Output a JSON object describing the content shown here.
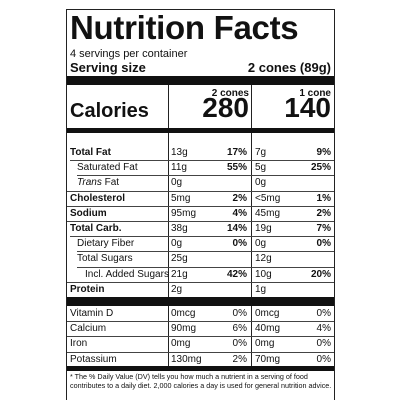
{
  "title": "Nutrition Facts",
  "servings_per_container": "4 servings per container",
  "serving_size_label": "Serving size",
  "serving_size_value": "2 cones (89g)",
  "columns": [
    {
      "header": "2 cones",
      "calories": "280"
    },
    {
      "header": "1 cone",
      "calories": "140"
    }
  ],
  "calories_label": "Calories",
  "nutrients": [
    {
      "label": "Total Fat",
      "style": "bold",
      "indent": 0,
      "c1_amt": "13g",
      "c1_pct": "17%",
      "c2_amt": "7g",
      "c2_pct": "9%"
    },
    {
      "label": "Saturated Fat",
      "style": "normal",
      "indent": 1,
      "c1_amt": "11g",
      "c1_pct": "55%",
      "c2_amt": "5g",
      "c2_pct": "25%"
    },
    {
      "label_italic": "Trans",
      "label": " Fat",
      "style": "normal",
      "indent": 1,
      "c1_amt": "0g",
      "c1_pct": "",
      "c2_amt": "0g",
      "c2_pct": ""
    },
    {
      "label": "Cholesterol",
      "style": "bold",
      "indent": 0,
      "c1_amt": "5mg",
      "c1_pct": "2%",
      "c2_amt": "<5mg",
      "c2_pct": "1%"
    },
    {
      "label": "Sodium",
      "style": "bold",
      "indent": 0,
      "c1_amt": "95mg",
      "c1_pct": "4%",
      "c2_amt": "45mg",
      "c2_pct": "2%"
    },
    {
      "label": "Total Carb.",
      "style": "bold",
      "indent": 0,
      "c1_amt": "38g",
      "c1_pct": "14%",
      "c2_amt": "19g",
      "c2_pct": "7%"
    },
    {
      "label": "Dietary Fiber",
      "style": "normal",
      "indent": 1,
      "c1_amt": "0g",
      "c1_pct": "0%",
      "c2_amt": "0g",
      "c2_pct": "0%"
    },
    {
      "label": "Total Sugars",
      "style": "normal",
      "indent": 1,
      "c1_amt": "25g",
      "c1_pct": "",
      "c2_amt": "12g",
      "c2_pct": ""
    },
    {
      "label": "Incl. Added Sugars",
      "style": "normal",
      "indent": 2,
      "c1_amt": "21g",
      "c1_pct": "42%",
      "c2_amt": "10g",
      "c2_pct": "20%"
    },
    {
      "label": "Protein",
      "style": "bold",
      "indent": 0,
      "c1_amt": "2g",
      "c1_pct": "",
      "c2_amt": "1g",
      "c2_pct": ""
    }
  ],
  "vitamins": [
    {
      "label": "Vitamin D",
      "c1_amt": "0mcg",
      "c1_pct": "0%",
      "c2_amt": "0mcg",
      "c2_pct": "0%"
    },
    {
      "label": "Calcium",
      "c1_amt": "90mg",
      "c1_pct": "6%",
      "c2_amt": "40mg",
      "c2_pct": "4%"
    },
    {
      "label": "Iron",
      "c1_amt": "0mg",
      "c1_pct": "0%",
      "c2_amt": "0mg",
      "c2_pct": "0%"
    },
    {
      "label": "Potassium",
      "c1_amt": "130mg",
      "c1_pct": "2%",
      "c2_amt": "70mg",
      "c2_pct": "0%"
    }
  ],
  "footnote": "* The % Daily Value (DV) tells you how much a nutrient in a serving of food contributes to a daily diet. 2,000 calories a day is used for general nutrition advice."
}
